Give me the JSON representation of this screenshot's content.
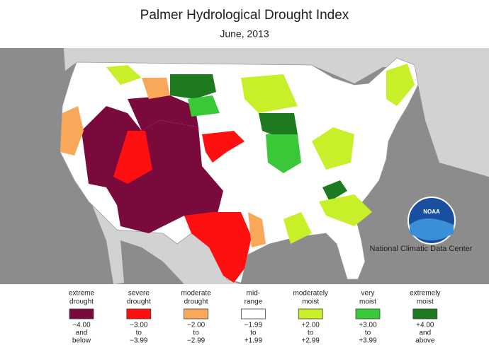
{
  "title": "Palmer Hydrological Drought Index",
  "subtitle": "June, 2013",
  "credit": "National Climatic Data Center",
  "logo": "NOAA",
  "legend": [
    {
      "label": [
        "extreme",
        "drought"
      ],
      "range": [
        "−4.00",
        "and",
        "below"
      ],
      "color": "#7b0a3c"
    },
    {
      "label": [
        "severe",
        "drought"
      ],
      "range": [
        "−3.00",
        "to",
        "−3.99"
      ],
      "color": "#ff1010"
    },
    {
      "label": [
        "moderate",
        "drought"
      ],
      "range": [
        "−2.00",
        "to",
        "−2.99"
      ],
      "color": "#f8a858"
    },
    {
      "label": [
        "mid-",
        "range"
      ],
      "range": [
        "−1.99",
        "to",
        "+1.99"
      ],
      "color": "#ffffff"
    },
    {
      "label": [
        "moderately",
        "moist"
      ],
      "range": [
        "+2.00",
        "to",
        "+2.99"
      ],
      "color": "#c8f028"
    },
    {
      "label": [
        "very",
        "moist"
      ],
      "range": [
        "+3.00",
        "to",
        "+3.99"
      ],
      "color": "#38c838"
    },
    {
      "label": [
        "extremely",
        "moist"
      ],
      "range": [
        "+4.00",
        "and",
        "above"
      ],
      "color": "#1e7a1e"
    }
  ]
}
